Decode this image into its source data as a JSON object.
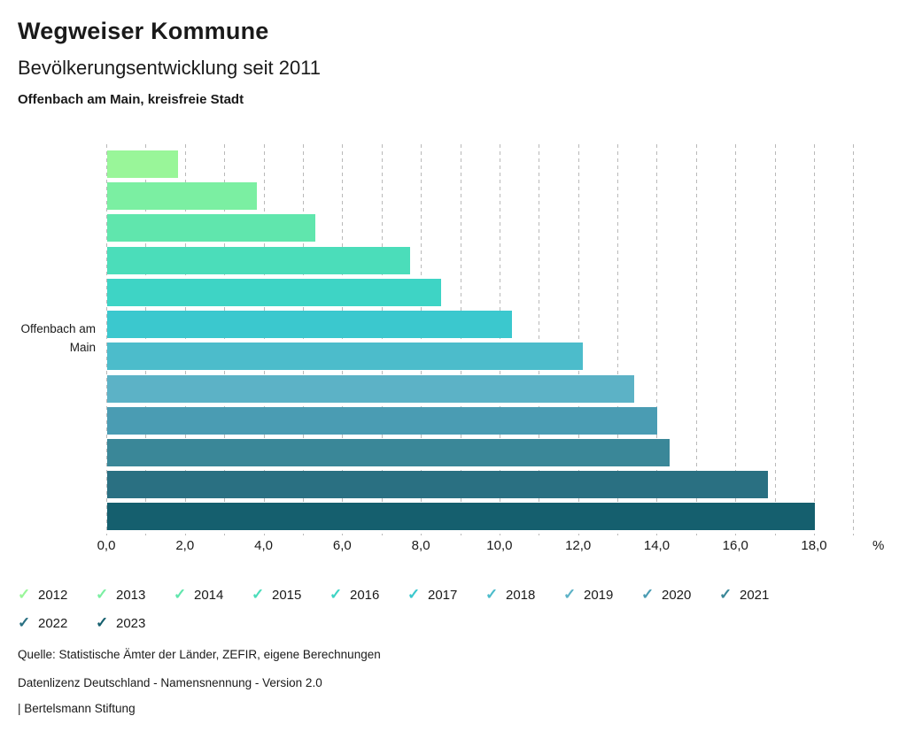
{
  "header": {
    "app_title": "Wegweiser Kommune"
  },
  "chart_data": {
    "type": "bar",
    "orientation": "horizontal",
    "title": "Bevölkerungsentwicklung seit 2011",
    "region": "Offenbach am Main, kreisfreie Stadt",
    "category_label_lines": [
      "Offenbach am",
      "Main"
    ],
    "years": [
      "2012",
      "2013",
      "2014",
      "2015",
      "2016",
      "2017",
      "2018",
      "2019",
      "2020",
      "2021",
      "2022",
      "2023"
    ],
    "values": [
      1.8,
      3.8,
      5.3,
      7.7,
      8.5,
      10.3,
      12.1,
      13.4,
      14.0,
      14.3,
      16.8,
      18.0
    ],
    "colors": [
      "#99F699",
      "#7BEFA2",
      "#60E6AD",
      "#4BDDBA",
      "#3ED4C5",
      "#3BC8CE",
      "#4CBCCB",
      "#5CB2C6",
      "#4A9CB3",
      "#3A8798",
      "#2A7082",
      "#155F6E"
    ],
    "unit": "%",
    "xlim": [
      0,
      19
    ],
    "gridline_step": 1.0,
    "grid_style": "dashed-vertical",
    "x_ticks": [
      0,
      2,
      4,
      6,
      8,
      10,
      12,
      14,
      16,
      18
    ],
    "x_tick_labels": [
      "0,0",
      "2,0",
      "4,0",
      "6,0",
      "8,0",
      "10,0",
      "12,0",
      "14,0",
      "16,0",
      "18,0"
    ],
    "legend_position": "bottom",
    "legend_check_icon": "✓"
  },
  "footer": {
    "source": "Quelle: Statistische Ämter der Länder, ZEFIR, eigene Berechnungen",
    "license": "Datenlizenz Deutschland - Namensnennung - Version 2.0",
    "attribution": "| Bertelsmann Stiftung"
  }
}
